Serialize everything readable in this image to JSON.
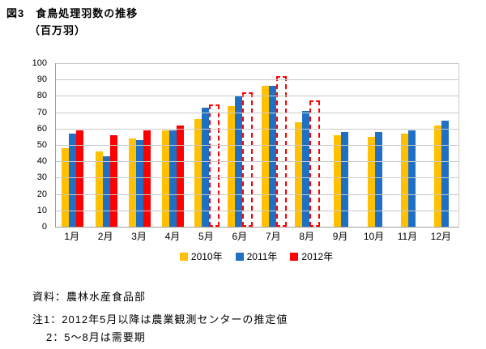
{
  "title": "図3　食鳥処理羽数の推移",
  "unit_label": "（百万羽）",
  "chart_data": {
    "type": "bar",
    "title": "食鳥処理羽数の推移",
    "ylabel": "百万羽",
    "xlabel": "",
    "categories": [
      "1月",
      "2月",
      "3月",
      "4月",
      "5月",
      "6月",
      "7月",
      "8月",
      "9月",
      "10月",
      "11月",
      "12月"
    ],
    "series": [
      {
        "name": "2010年",
        "color": "#FFC000",
        "values": [
          48,
          46,
          54,
          59,
          66,
          74,
          86,
          64,
          56,
          55,
          57,
          62
        ]
      },
      {
        "name": "2011年",
        "color": "#1F70C4",
        "values": [
          57,
          43,
          53,
          59,
          73,
          80,
          86,
          71,
          58,
          58,
          59,
          65
        ]
      },
      {
        "name": "2012年",
        "color": "#FE0000",
        "values": [
          59,
          56,
          59,
          62,
          74,
          81,
          91,
          76,
          null,
          null,
          null,
          null
        ],
        "estimated_start_index": 4,
        "estimated_style": "dashed-outline"
      }
    ],
    "ylim": [
      0,
      100
    ],
    "yticks": [
      0,
      10,
      20,
      30,
      40,
      50,
      60,
      70,
      80,
      90,
      100
    ],
    "grid": true,
    "legend_position": "bottom",
    "colors": {
      "grid": "#C9C9C9",
      "axis": "#9E9E9E",
      "estimated_fill": "#FFFFFF"
    }
  },
  "footer": {
    "source": "資料：農林水産食品部",
    "note1": "注1：2012年5月以降は農業観測センターの推定値",
    "note2": "2：5～8月は需要期"
  }
}
